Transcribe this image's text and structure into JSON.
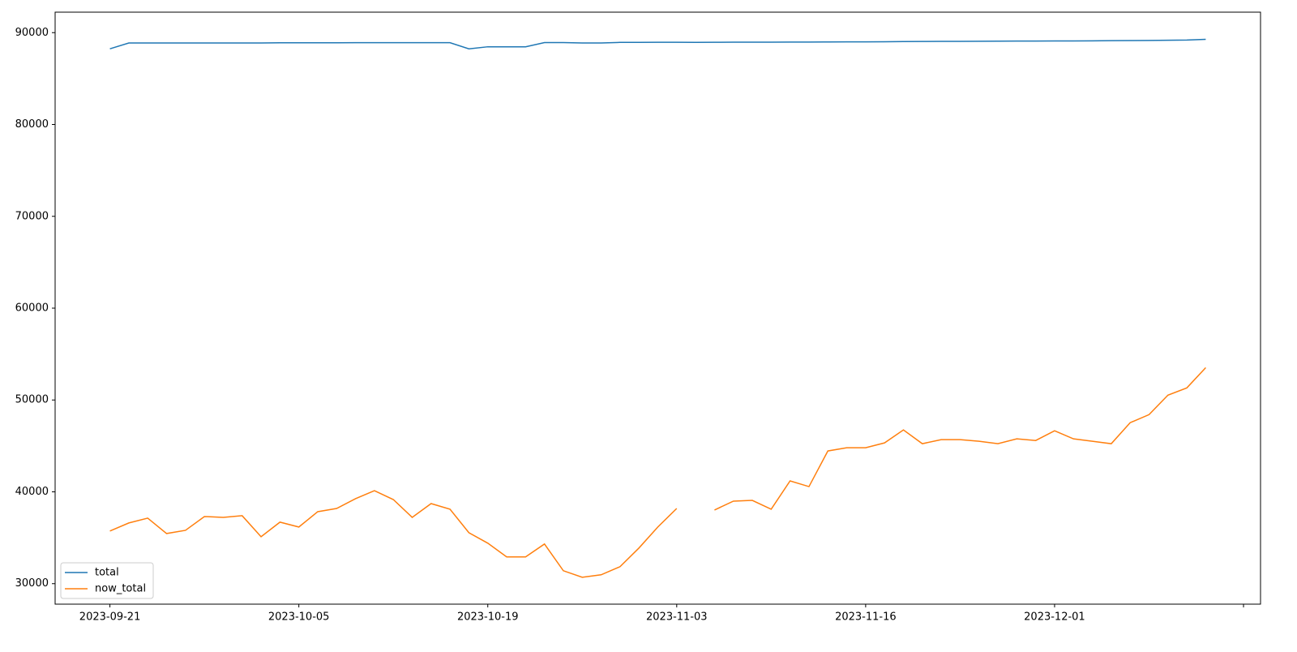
{
  "chart_data": {
    "type": "line",
    "categories": [
      "2023-09-21",
      null,
      null,
      null,
      null,
      null,
      null,
      null,
      null,
      null,
      "2023-10-05",
      null,
      null,
      null,
      null,
      null,
      null,
      null,
      null,
      null,
      "2023-10-19",
      null,
      null,
      null,
      null,
      null,
      null,
      null,
      null,
      null,
      "2023-11-03",
      null,
      null,
      null,
      null,
      null,
      null,
      null,
      null,
      null,
      "2023-11-16",
      null,
      null,
      null,
      null,
      null,
      null,
      null,
      null,
      null,
      "2023-12-01",
      null,
      null,
      null,
      null,
      null,
      null,
      null,
      null
    ],
    "xlim": [
      -2.9,
      60.9
    ],
    "xticks": [
      0,
      10,
      20,
      30,
      40,
      50,
      60
    ],
    "ylim": [
      27770,
      92230
    ],
    "yticks": [
      30000,
      40000,
      50000,
      60000,
      70000,
      80000,
      90000
    ],
    "grid": false,
    "legend": "lower left",
    "series": [
      {
        "name": "total",
        "color": "#1f77b4",
        "values": [
          88240,
          88870,
          88870,
          88870,
          88880,
          88880,
          88880,
          88880,
          88880,
          88900,
          88900,
          88900,
          88900,
          88910,
          88910,
          88910,
          88910,
          88910,
          88910,
          88240,
          88460,
          88460,
          88460,
          88920,
          88920,
          88870,
          88870,
          88940,
          88940,
          88950,
          88950,
          88940,
          88950,
          88960,
          88960,
          88960,
          88970,
          88970,
          88990,
          89000,
          89000,
          89010,
          89030,
          89040,
          89050,
          89050,
          89060,
          89070,
          89080,
          89080,
          89090,
          89100,
          89110,
          89130,
          89140,
          89150,
          89170,
          89190,
          89270
        ]
      },
      {
        "name": "now_total",
        "color": "#ff7f0e",
        "values": [
          35730,
          36610,
          37140,
          35460,
          35810,
          37310,
          37220,
          37400,
          35110,
          36700,
          36170,
          37840,
          38190,
          39250,
          40130,
          39160,
          37220,
          38720,
          38110,
          35550,
          34410,
          32910,
          32910,
          34320,
          31410,
          30700,
          30970,
          31850,
          33880,
          36170,
          38190,
          null,
          38020,
          38990,
          39070,
          38110,
          41190,
          40570,
          44450,
          44800,
          44800,
          45330,
          46740,
          45240,
          45680,
          45680,
          45510,
          45240,
          45770,
          45590,
          46650,
          45770,
          45510,
          45240,
          47530,
          48410,
          50530,
          51320,
          53520
        ]
      }
    ]
  }
}
